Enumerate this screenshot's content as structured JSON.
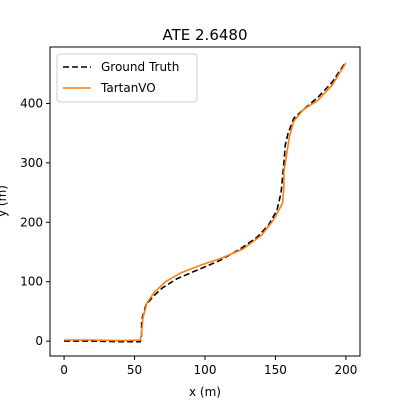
{
  "chart_data": {
    "type": "line",
    "title": "ATE 2.6480",
    "xlabel": "x (m)",
    "ylabel": "y (m)",
    "xlim": [
      -10,
      210
    ],
    "ylim": [
      -25,
      495
    ],
    "xticks": [
      0,
      50,
      100,
      150,
      200
    ],
    "yticks": [
      0,
      100,
      200,
      300,
      400
    ],
    "grid": false,
    "legend_position": "upper-left",
    "series": [
      {
        "name": "Ground Truth",
        "color": "#000000",
        "dash": "dashed",
        "points": [
          [
            0,
            0
          ],
          [
            20,
            0
          ],
          [
            40,
            -1
          ],
          [
            54,
            -1
          ],
          [
            55,
            10
          ],
          [
            55,
            35
          ],
          [
            58,
            60
          ],
          [
            63,
            75
          ],
          [
            70,
            90
          ],
          [
            80,
            105
          ],
          [
            95,
            120
          ],
          [
            110,
            135
          ],
          [
            125,
            155
          ],
          [
            137,
            175
          ],
          [
            145,
            195
          ],
          [
            151,
            220
          ],
          [
            154,
            250
          ],
          [
            155,
            275
          ],
          [
            156,
            300
          ],
          [
            157,
            330
          ],
          [
            159,
            350
          ],
          [
            163,
            375
          ],
          [
            170,
            390
          ],
          [
            180,
            410
          ],
          [
            190,
            435
          ],
          [
            200,
            470
          ]
        ]
      },
      {
        "name": "TartanVO",
        "color": "#ff7f0e",
        "dash": "solid",
        "points": [
          [
            0,
            2
          ],
          [
            20,
            2
          ],
          [
            40,
            1
          ],
          [
            54,
            2
          ],
          [
            55,
            12
          ],
          [
            56,
            40
          ],
          [
            59,
            65
          ],
          [
            64,
            82
          ],
          [
            72,
            100
          ],
          [
            83,
            115
          ],
          [
            97,
            128
          ],
          [
            112,
            140
          ],
          [
            127,
            155
          ],
          [
            140,
            178
          ],
          [
            149,
            205
          ],
          [
            155,
            232
          ],
          [
            156,
            258
          ],
          [
            156,
            285
          ],
          [
            158,
            315
          ],
          [
            160,
            345
          ],
          [
            163,
            370
          ],
          [
            170,
            390
          ],
          [
            180,
            405
          ],
          [
            190,
            430
          ],
          [
            200,
            468
          ]
        ]
      }
    ]
  }
}
